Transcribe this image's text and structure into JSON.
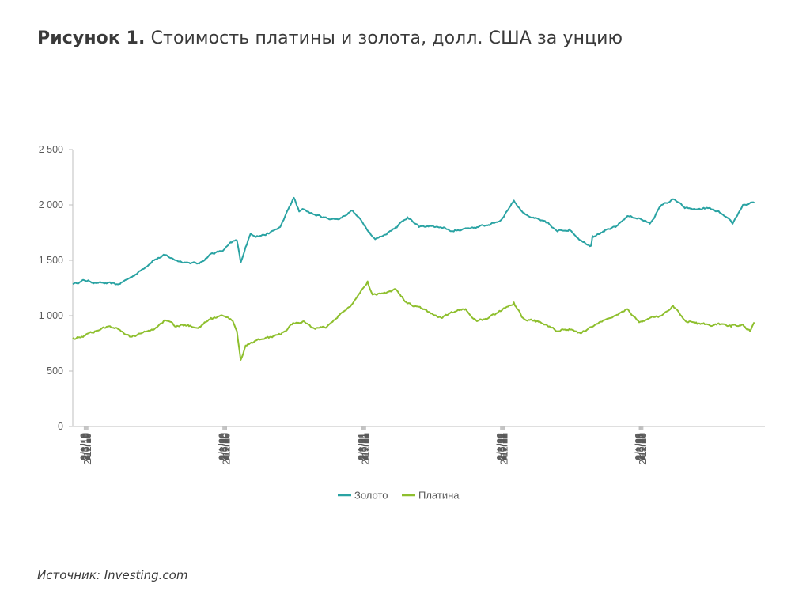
{
  "title": {
    "bold": "Рисунок 1.",
    "text": "Стоимость платины и золота, долл. США за унцию"
  },
  "source": {
    "label": "Источник:",
    "text": "Investing.com"
  },
  "chart_data": {
    "type": "line",
    "title": "Стоимость платины и золота, долл. США за унцию",
    "ylim": [
      0,
      2500
    ],
    "yticks": [
      0,
      500,
      1000,
      1500,
      2000,
      2500
    ],
    "ytick_labels": [
      "0",
      "500",
      "1 000",
      "1 500",
      "2 000",
      "2 500"
    ],
    "x_tick_labels": [
      "2/1/19",
      "2/3/19",
      "2/5/19",
      "2/7/19",
      "2/9/19",
      "2/11/19",
      "2/1/20",
      "2/3/20",
      "2/5/20",
      "2/7/20",
      "2/9/20",
      "2/11/20",
      "2/1/21",
      "2/3/21",
      "2/5/21",
      "2/7/21",
      "2/9/21",
      "2/11/21",
      "2/1/22",
      "2/3/22",
      "2/5/22",
      "2/7/22",
      "2/9/22",
      "2/11/22",
      "2/1/23",
      "2/3/23",
      "2/5/23",
      "2/7/23",
      "2/9/23",
      "2/11/23"
    ],
    "grid": false,
    "legend_position": "bottom",
    "series": [
      {
        "name": "Золото",
        "color": "#2aa3a3",
        "x": [
          "2019-01-02",
          "2019-02-01",
          "2019-03-01",
          "2019-04-01",
          "2019-05-01",
          "2019-06-01",
          "2019-07-01",
          "2019-08-01",
          "2019-09-01",
          "2019-10-01",
          "2019-11-01",
          "2019-12-01",
          "2020-01-01",
          "2020-02-01",
          "2020-02-24",
          "2020-03-09",
          "2020-03-19",
          "2020-04-01",
          "2020-04-14",
          "2020-05-01",
          "2020-06-01",
          "2020-07-01",
          "2020-08-06",
          "2020-08-20",
          "2020-09-01",
          "2020-10-01",
          "2020-11-01",
          "2020-12-01",
          "2021-01-06",
          "2021-02-01",
          "2021-03-08",
          "2021-04-01",
          "2021-05-01",
          "2021-06-01",
          "2021-07-01",
          "2021-08-01",
          "2021-09-01",
          "2021-10-01",
          "2021-11-01",
          "2021-12-01",
          "2022-01-01",
          "2022-02-01",
          "2022-03-08",
          "2022-04-01",
          "2022-05-01",
          "2022-06-01",
          "2022-07-01",
          "2022-08-01",
          "2022-09-01",
          "2022-09-27",
          "2022-10-01",
          "2022-11-01",
          "2022-12-01",
          "2023-01-01",
          "2023-02-01",
          "2023-03-01",
          "2023-04-01",
          "2023-05-04",
          "2023-06-01",
          "2023-07-01",
          "2023-08-01",
          "2023-09-01",
          "2023-10-05",
          "2023-11-01",
          "2023-12-01"
        ],
        "values": [
          1285,
          1320,
          1300,
          1290,
          1282,
          1340,
          1410,
          1500,
          1545,
          1500,
          1480,
          1470,
          1560,
          1585,
          1660,
          1680,
          1480,
          1620,
          1740,
          1720,
          1740,
          1800,
          2065,
          1940,
          1960,
          1910,
          1880,
          1870,
          1950,
          1850,
          1690,
          1730,
          1800,
          1890,
          1800,
          1810,
          1790,
          1760,
          1790,
          1800,
          1820,
          1860,
          2040,
          1930,
          1880,
          1840,
          1760,
          1780,
          1680,
          1630,
          1720,
          1760,
          1800,
          1900,
          1880,
          1830,
          2000,
          2050,
          1970,
          1960,
          1970,
          1930,
          1830,
          2000,
          2020
        ]
      },
      {
        "name": "Платина",
        "color": "#8ebf2e",
        "x": [
          "2019-01-02",
          "2019-02-01",
          "2019-03-01",
          "2019-04-01",
          "2019-05-01",
          "2019-06-01",
          "2019-07-01",
          "2019-08-01",
          "2019-09-01",
          "2019-10-01",
          "2019-11-01",
          "2019-12-01",
          "2020-01-01",
          "2020-02-01",
          "2020-02-24",
          "2020-03-09",
          "2020-03-19",
          "2020-04-01",
          "2020-05-01",
          "2020-06-01",
          "2020-07-01",
          "2020-08-01",
          "2020-09-01",
          "2020-10-01",
          "2020-11-01",
          "2020-12-01",
          "2021-01-01",
          "2021-02-16",
          "2021-03-01",
          "2021-04-01",
          "2021-05-01",
          "2021-06-01",
          "2021-07-01",
          "2021-08-01",
          "2021-09-01",
          "2021-10-01",
          "2021-11-01",
          "2021-12-01",
          "2022-01-01",
          "2022-02-01",
          "2022-03-08",
          "2022-04-01",
          "2022-05-01",
          "2022-06-01",
          "2022-07-01",
          "2022-08-01",
          "2022-09-01",
          "2022-10-01",
          "2022-11-01",
          "2022-12-01",
          "2023-01-01",
          "2023-02-01",
          "2023-03-01",
          "2023-04-01",
          "2023-05-01",
          "2023-06-01",
          "2023-07-01",
          "2023-08-01",
          "2023-09-01",
          "2023-10-01",
          "2023-11-01",
          "2023-11-20",
          "2023-12-01"
        ],
        "values": [
          800,
          820,
          860,
          900,
          880,
          810,
          840,
          870,
          960,
          900,
          920,
          900,
          980,
          1000,
          960,
          860,
          600,
          730,
          780,
          800,
          830,
          920,
          950,
          880,
          900,
          1000,
          1080,
          1310,
          1190,
          1210,
          1240,
          1110,
          1080,
          1020,
          980,
          1030,
          1060,
          950,
          980,
          1040,
          1120,
          980,
          960,
          920,
          860,
          880,
          840,
          900,
          960,
          1000,
          1060,
          940,
          980,
          1000,
          1090,
          960,
          940,
          920,
          920,
          900,
          920,
          860,
          940
        ]
      }
    ]
  }
}
